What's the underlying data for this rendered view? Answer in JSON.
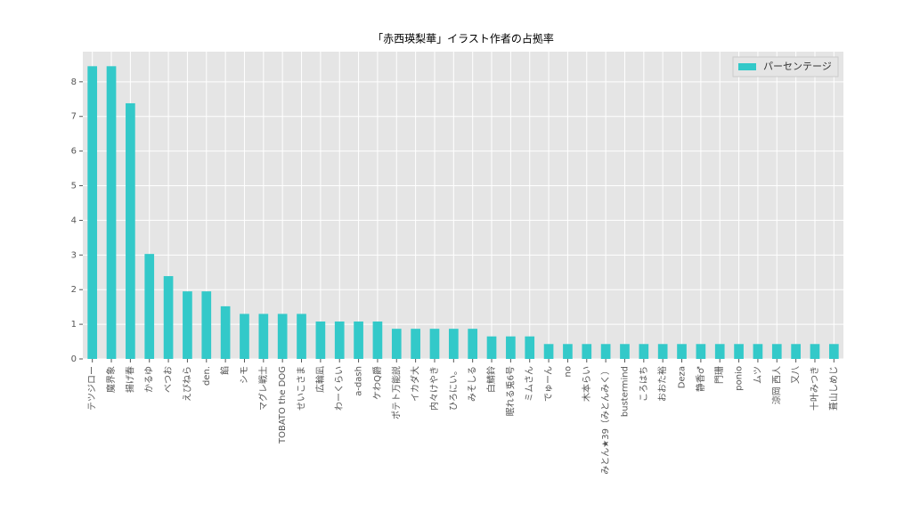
{
  "chart_data": {
    "type": "bar",
    "title": "「赤西瑛梨華」イラスト作者の占拠率",
    "categories": [
      "テツジロー",
      "魔界象",
      "揚げ春",
      "かるゆ",
      "べつお",
      "えびねら",
      "den.",
      "餡",
      "シモ",
      "マグレ戦士",
      "TOBATO the DOG",
      "せいこさま",
      "広輪凪",
      "わーくらい",
      "a-dash",
      "ケわQ爵",
      "ポテト万能説",
      "イカダ大",
      "内々けやき",
      "ひろにい。",
      "みそしる",
      "白鯖鈴",
      "眠れる兎6号",
      "ミムさん",
      "でゅーん",
      "no",
      "木本らい",
      "みとん★39（みとんみく）",
      "bustermind",
      "ころはち",
      "おおた裕",
      "Deza",
      "静香♂",
      "門珊",
      "ponio",
      "ムツ",
      "涼岡 西人",
      "又八",
      "十叶みつき",
      "葺山しめじ"
    ],
    "series": [
      {
        "name": "パーセンテージ",
        "color": "#33c9c9",
        "values": [
          8.45,
          8.45,
          7.38,
          3.03,
          2.39,
          1.95,
          1.95,
          1.52,
          1.3,
          1.3,
          1.3,
          1.3,
          1.08,
          1.08,
          1.08,
          1.08,
          0.87,
          0.87,
          0.87,
          0.87,
          0.87,
          0.65,
          0.65,
          0.65,
          0.43,
          0.43,
          0.43,
          0.43,
          0.43,
          0.43,
          0.43,
          0.43,
          0.43,
          0.43,
          0.43,
          0.43,
          0.43,
          0.43,
          0.43,
          0.43
        ]
      }
    ],
    "ylim": [
      0,
      8.87
    ],
    "yticks": [
      0,
      1,
      2,
      3,
      4,
      5,
      6,
      7,
      8
    ],
    "grid": true,
    "legend": "upper-right"
  }
}
